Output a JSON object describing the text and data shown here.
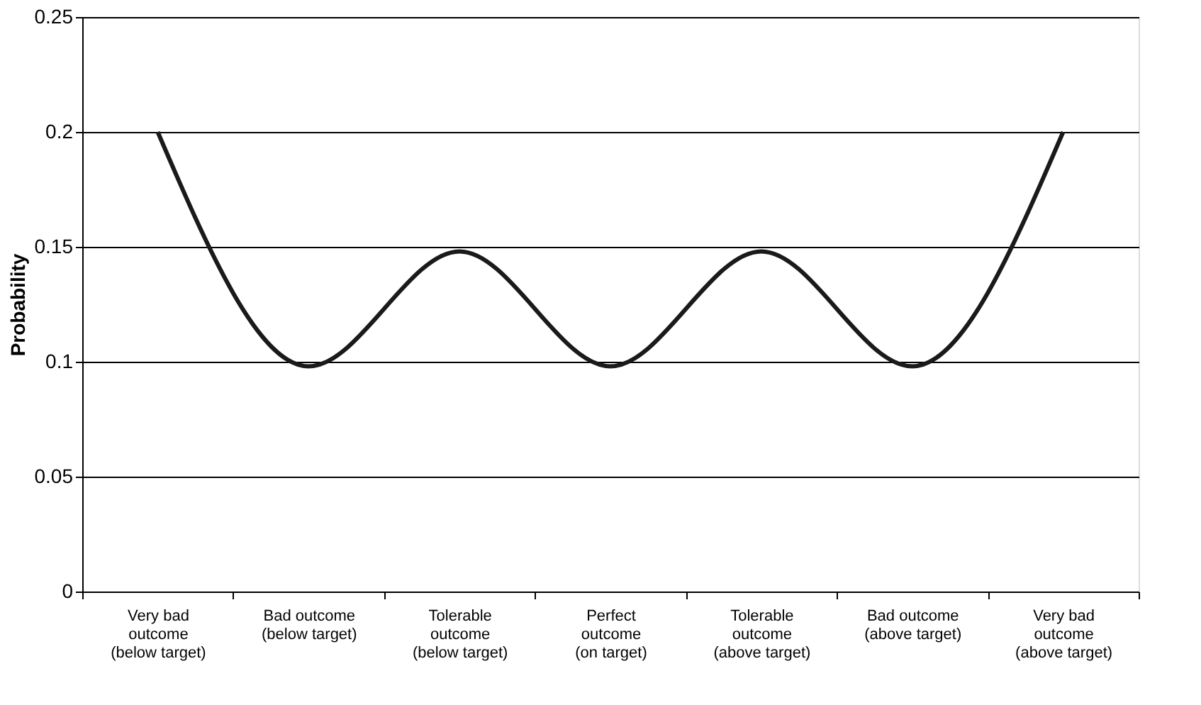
{
  "chart_data": {
    "type": "line",
    "ylabel": "Probability",
    "categories": [
      "Very bad outcome (below target)",
      "Bad outcome (below target)",
      "Tolerable outcome (below target)",
      "Perfect outcome (on target)",
      "Tolerable outcome (above target)",
      "Bad outcome (above target)",
      "Very bad outcome (above target)"
    ],
    "series": [
      {
        "color": "#1a1a1a",
        "values": [
          0.2,
          0.098,
          0.148,
          0.098,
          0.148,
          0.098,
          0.2
        ]
      }
    ],
    "ylim": [
      0,
      0.25
    ],
    "yticks": [
      0,
      0.05,
      0.1,
      0.15,
      0.2,
      0.25
    ],
    "grid": "y",
    "marker": "none",
    "line_style": "solid"
  }
}
